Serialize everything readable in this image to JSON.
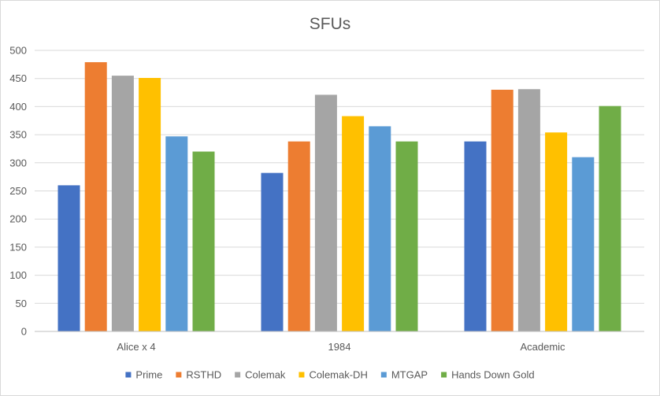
{
  "chart_data": {
    "type": "bar",
    "title": "SFUs",
    "xlabel": "",
    "ylabel": "",
    "ylim": [
      0,
      500
    ],
    "yticks": [
      0,
      50,
      100,
      150,
      200,
      250,
      300,
      350,
      400,
      450,
      500
    ],
    "grid": true,
    "legend_position": "bottom",
    "categories": [
      "Alice x 4",
      "1984",
      "Academic"
    ],
    "series": [
      {
        "name": "Prime",
        "color": "#4472C4",
        "values": [
          260,
          282,
          338
        ]
      },
      {
        "name": "RSTHD",
        "color": "#ED7D31",
        "values": [
          479,
          338,
          430
        ]
      },
      {
        "name": "Colemak",
        "color": "#A5A5A5",
        "values": [
          455,
          421,
          431
        ]
      },
      {
        "name": "Colemak-DH",
        "color": "#FFC000",
        "values": [
          451,
          383,
          354
        ]
      },
      {
        "name": "MTGAP",
        "color": "#5B9BD5",
        "values": [
          347,
          365,
          310
        ]
      },
      {
        "name": "Hands Down Gold",
        "color": "#70AD47",
        "values": [
          320,
          338,
          401
        ]
      }
    ]
  }
}
